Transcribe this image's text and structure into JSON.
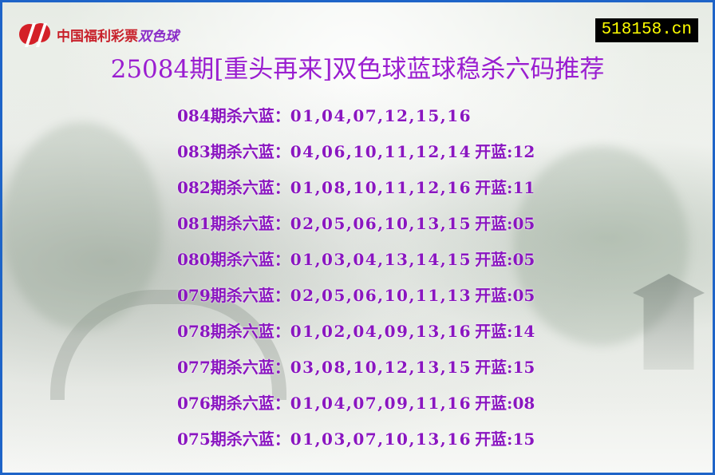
{
  "logo": {
    "text": "中国福利彩票",
    "brand": "双色球",
    "icon": "welfare-lottery-logo-icon"
  },
  "site_badge": "518158.cn",
  "title": "25084期[重头再来]双色球蓝球稳杀六码推荐",
  "colors": {
    "title": "#9a1ed0",
    "row_text": "#8a16c0",
    "border": "#1e64c8",
    "badge_bg": "#000000",
    "badge_text": "#ffff00"
  },
  "rows": [
    {
      "period": "084",
      "label": "期杀六蓝：",
      "numbers": "01,04,07,12,15,16",
      "drawn_label": "",
      "drawn": ""
    },
    {
      "period": "083",
      "label": "期杀六蓝：",
      "numbers": "04,06,10,11,12,14",
      "drawn_label": "开蓝:",
      "drawn": "12"
    },
    {
      "period": "082",
      "label": "期杀六蓝：",
      "numbers": "01,08,10,11,12,16",
      "drawn_label": "开蓝:",
      "drawn": "11"
    },
    {
      "period": "081",
      "label": "期杀六蓝：",
      "numbers": "02,05,06,10,13,15",
      "drawn_label": "开蓝:",
      "drawn": "05"
    },
    {
      "period": "080",
      "label": "期杀六蓝：",
      "numbers": "01,03,04,13,14,15",
      "drawn_label": "开蓝:",
      "drawn": "05"
    },
    {
      "period": "079",
      "label": "期杀六蓝：",
      "numbers": "02,05,06,10,11,13",
      "drawn_label": "开蓝:",
      "drawn": "05"
    },
    {
      "period": "078",
      "label": "期杀六蓝：",
      "numbers": "01,02,04,09,13,16",
      "drawn_label": "开蓝:",
      "drawn": "14"
    },
    {
      "period": "077",
      "label": "期杀六蓝：",
      "numbers": "03,08,10,12,13,15",
      "drawn_label": "开蓝:",
      "drawn": "15"
    },
    {
      "period": "076",
      "label": "期杀六蓝：",
      "numbers": "01,04,07,09,11,16",
      "drawn_label": "开蓝:",
      "drawn": "08"
    },
    {
      "period": "075",
      "label": "期杀六蓝：",
      "numbers": "01,03,07,10,13,16",
      "drawn_label": "开蓝:",
      "drawn": "15"
    }
  ]
}
